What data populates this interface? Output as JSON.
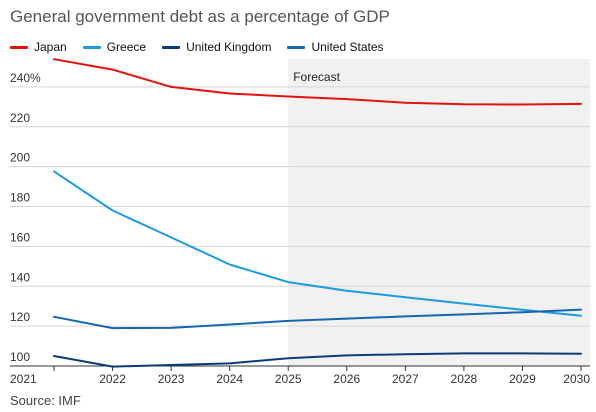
{
  "chart_data": {
    "type": "line",
    "title": "General government debt as a percentage of GDP",
    "source": "Source: IMF",
    "forecast_label": "Forecast",
    "forecast_start": 2025,
    "x": [
      2021,
      2022,
      2023,
      2024,
      2025,
      2026,
      2027,
      2028,
      2029,
      2030
    ],
    "y_ticks": [
      "100",
      "120",
      "140",
      "160",
      "180",
      "200",
      "220",
      "240%"
    ],
    "ylim": [
      100,
      254
    ],
    "xlim": [
      2021,
      2030
    ],
    "series": [
      {
        "name": "Japan",
        "color": "#e3120b",
        "values": [
          253.9,
          248.7,
          240.0,
          236.7,
          235.2,
          233.9,
          232.1,
          231.3,
          231.2,
          231.5
        ]
      },
      {
        "name": "Greece",
        "color": "#1c9ce0",
        "values": [
          197.6,
          178.0,
          164.5,
          150.9,
          142.1,
          137.7,
          134.5,
          131.3,
          128.2,
          125.2
        ]
      },
      {
        "name": "United Kingdom",
        "color": "#0b3c7a",
        "values": [
          105.0,
          99.7,
          100.5,
          101.3,
          103.9,
          105.3,
          105.9,
          106.3,
          106.3,
          106.1
        ]
      },
      {
        "name": "United States",
        "color": "#1666b0",
        "values": [
          124.7,
          119.0,
          119.1,
          120.8,
          122.6,
          123.8,
          124.9,
          125.9,
          127.0,
          128.3
        ]
      }
    ]
  }
}
